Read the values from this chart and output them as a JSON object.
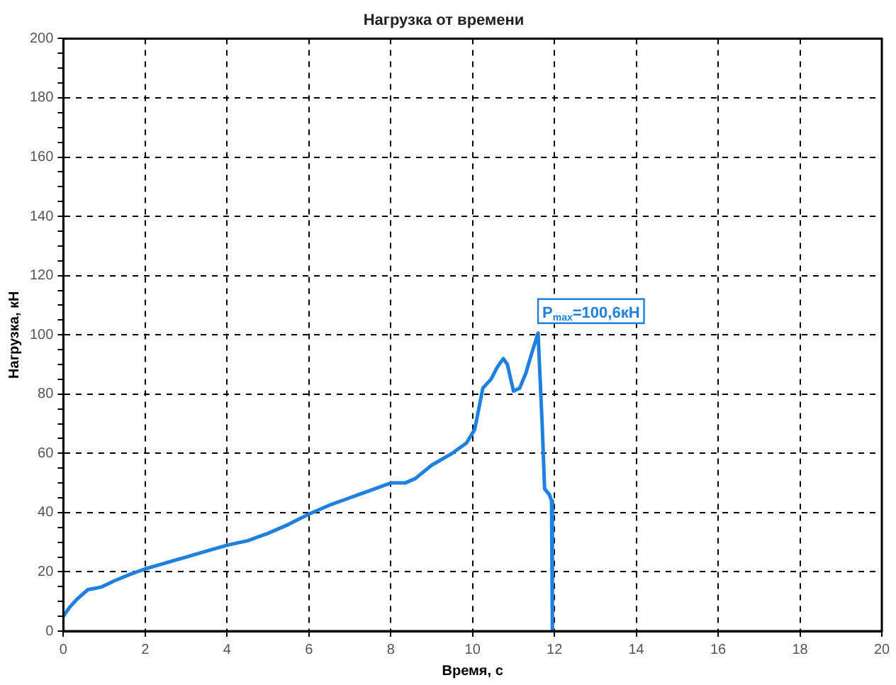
{
  "chart_data": {
    "type": "line",
    "title": "Нагрузка от времени",
    "xlabel": "Время, с",
    "ylabel": "Нагрузка, кН",
    "x": [
      0,
      0.15,
      0.35,
      0.6,
      0.8,
      0.95,
      1.25,
      1.6,
      2,
      2.5,
      3,
      3.5,
      4,
      4.5,
      5,
      5.5,
      6,
      6.5,
      7,
      7.5,
      8,
      8.35,
      8.6,
      9,
      9.5,
      9.85,
      10.05,
      10.25,
      10.45,
      10.6,
      10.75,
      10.85,
      11,
      11.15,
      11.3,
      11.45,
      11.6,
      11.7,
      11.76,
      11.88,
      11.93,
      11.95
    ],
    "series": [
      {
        "color": "#1f80e0",
        "values": [
          5,
          8,
          11,
          14,
          14.5,
          15,
          17,
          19,
          21,
          23,
          25,
          27,
          29,
          30.5,
          33,
          36,
          39.5,
          42.5,
          45,
          47.5,
          50,
          50,
          51.5,
          56,
          60,
          63.5,
          68,
          82,
          85,
          89,
          92,
          90,
          81,
          82,
          87,
          94,
          100.6,
          70,
          48,
          46,
          44,
          0
        ]
      }
    ],
    "xlim": [
      0,
      20
    ],
    "ylim": [
      0,
      200
    ],
    "xticks": [
      0,
      2,
      4,
      6,
      8,
      10,
      12,
      14,
      16,
      18,
      20
    ],
    "yticks": [
      0,
      {
        "value": 5,
        "label": null
      },
      {
        "value": 10,
        "label": null
      },
      {
        "value": 15,
        "label": null
      },
      20,
      {
        "value": 25,
        "label": null
      },
      {
        "value": 30,
        "label": null
      },
      {
        "value": 35,
        "label": null
      },
      40,
      {
        "value": 45,
        "label": null
      },
      {
        "value": 50,
        "label": null
      },
      {
        "value": 55,
        "label": null
      },
      60,
      {
        "value": 65,
        "label": null
      },
      {
        "value": 70,
        "label": null
      },
      {
        "value": 75,
        "label": null
      },
      80,
      {
        "value": 85,
        "label": null
      },
      {
        "value": 90,
        "label": null
      },
      {
        "value": 95,
        "label": null
      },
      100,
      {
        "value": 105,
        "label": null
      },
      {
        "value": 110,
        "label": null
      },
      {
        "value": 115,
        "label": null
      },
      120,
      {
        "value": 125,
        "label": null
      },
      {
        "value": 130,
        "label": null
      },
      {
        "value": 135,
        "label": null
      },
      140,
      {
        "value": 145,
        "label": null
      },
      {
        "value": 150,
        "label": null
      },
      {
        "value": 155,
        "label": null
      },
      160,
      {
        "value": 165,
        "label": null
      },
      {
        "value": 170,
        "label": null
      },
      {
        "value": 175,
        "label": null
      },
      180,
      {
        "value": 185,
        "label": null
      },
      {
        "value": 190,
        "label": null
      },
      {
        "value": 195,
        "label": null
      },
      200
    ],
    "grid": true,
    "marker": "none",
    "line_style": "solid",
    "annotations": [
      {
        "text": "P$_{max}$=100,6кН",
        "x": 11.6,
        "y": 100.6
      }
    ]
  }
}
